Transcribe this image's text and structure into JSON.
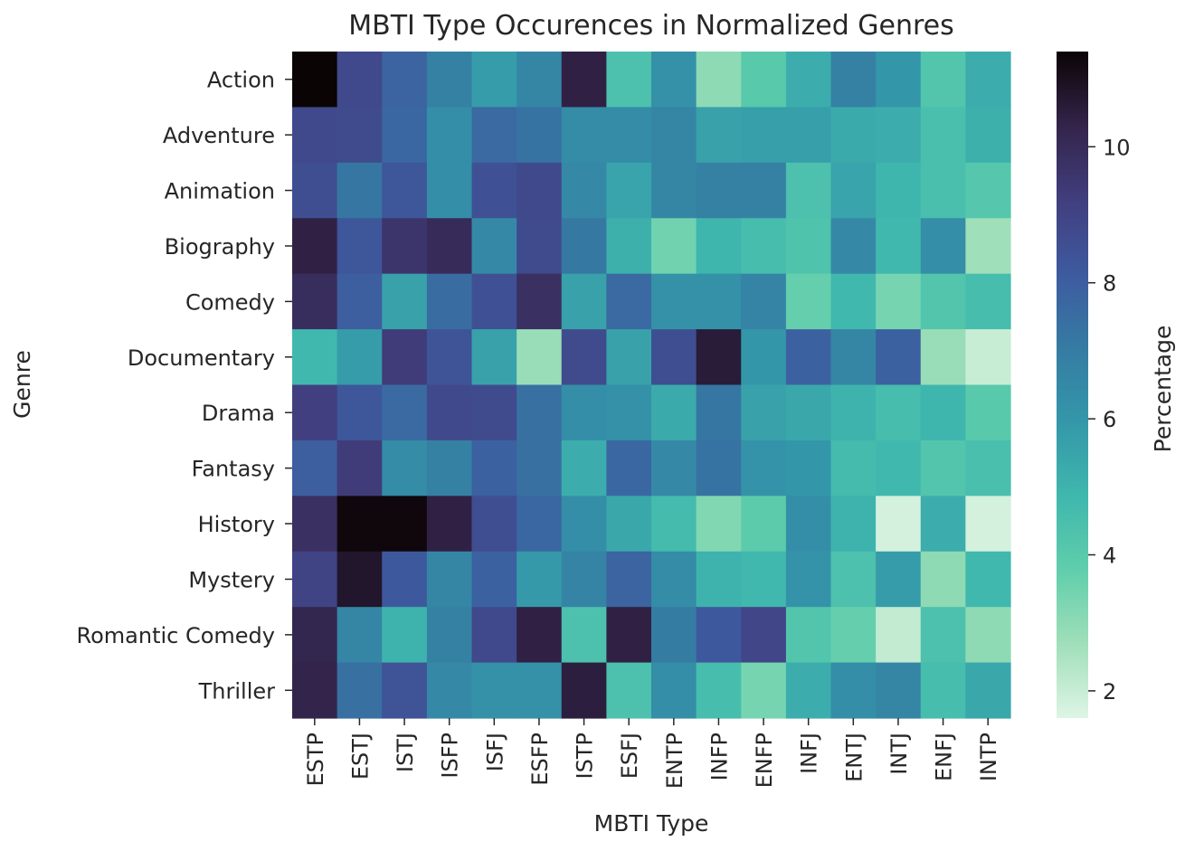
{
  "chart_data": {
    "type": "heatmap",
    "title": "MBTI Type Occurences in Normalized Genres",
    "xlabel": "MBTI Type",
    "ylabel": "Genre",
    "x_categories": [
      "ESTP",
      "ESTJ",
      "ISTJ",
      "ISFP",
      "ISFJ",
      "ESFP",
      "ISTP",
      "ESFJ",
      "ENTP",
      "INFP",
      "ENFP",
      "INFJ",
      "ENTJ",
      "INTJ",
      "ENFJ",
      "INTP"
    ],
    "y_categories": [
      "Action",
      "Adventure",
      "Animation",
      "Biography",
      "Comedy",
      "Documentary",
      "Drama",
      "Fantasy",
      "History",
      "Mystery",
      "Romantic Comedy",
      "Thriller"
    ],
    "values": [
      [
        11.4,
        8.8,
        7.8,
        6.8,
        5.8,
        6.6,
        10.4,
        4.4,
        6.2,
        3.0,
        4.0,
        5.2,
        6.8,
        6.0,
        4.2,
        5.2
      ],
      [
        8.8,
        8.7,
        7.7,
        6.3,
        7.6,
        7.3,
        6.4,
        6.4,
        6.6,
        5.6,
        5.7,
        5.7,
        5.3,
        5.2,
        4.5,
        5.1
      ],
      [
        8.6,
        7.2,
        8.3,
        6.3,
        8.5,
        8.8,
        6.5,
        5.5,
        6.6,
        6.8,
        6.8,
        4.4,
        5.5,
        4.9,
        4.5,
        4.1
      ],
      [
        10.4,
        8.3,
        9.6,
        10.0,
        6.5,
        8.7,
        7.1,
        5.1,
        3.5,
        4.9,
        4.6,
        4.3,
        6.5,
        4.8,
        6.3,
        2.7
      ],
      [
        9.9,
        8.0,
        5.6,
        7.5,
        8.5,
        9.8,
        5.6,
        7.6,
        6.2,
        6.2,
        6.7,
        3.7,
        4.8,
        3.4,
        4.2,
        4.6
      ],
      [
        4.8,
        5.8,
        9.3,
        8.4,
        5.6,
        2.8,
        8.7,
        5.6,
        8.6,
        10.6,
        6.0,
        7.9,
        6.6,
        7.9,
        2.8,
        2.0
      ],
      [
        9.2,
        8.3,
        7.6,
        8.8,
        8.7,
        7.4,
        6.3,
        6.2,
        5.3,
        7.2,
        5.6,
        5.4,
        5.0,
        4.6,
        4.9,
        4.0
      ],
      [
        8.0,
        9.3,
        6.4,
        6.8,
        7.9,
        7.4,
        5.2,
        7.7,
        6.5,
        7.3,
        6.1,
        6.0,
        4.7,
        4.8,
        4.2,
        4.5
      ],
      [
        9.8,
        11.3,
        11.3,
        10.4,
        8.6,
        7.7,
        6.3,
        5.4,
        4.7,
        3.2,
        3.9,
        6.3,
        5.0,
        1.8,
        5.2,
        1.8
      ],
      [
        9.0,
        10.8,
        8.2,
        6.6,
        7.9,
        5.9,
        6.7,
        7.8,
        6.4,
        5.0,
        4.8,
        6.1,
        4.4,
        5.8,
        3.0,
        4.8
      ],
      [
        10.2,
        6.6,
        5.0,
        6.8,
        8.8,
        10.4,
        4.4,
        10.4,
        7.0,
        8.2,
        8.9,
        4.2,
        3.7,
        2.1,
        4.4,
        3.0
      ],
      [
        10.3,
        7.4,
        8.4,
        6.5,
        6.2,
        6.2,
        10.5,
        4.4,
        6.3,
        4.6,
        3.4,
        5.2,
        6.3,
        6.6,
        4.6,
        5.4
      ]
    ],
    "vmin": 1.6,
    "vmax": 11.4,
    "colormap": "mako_r",
    "colors": [
      "#def5e5",
      "#a0dfb9",
      "#60ceac",
      "#3fb7ad",
      "#3497a9",
      "#357ba3",
      "#3e5a9f",
      "#413e7e",
      "#33244a",
      "#0b0405"
    ],
    "colorbar": {
      "label": "Percentage",
      "ticks": [
        2,
        4,
        6,
        8,
        10
      ],
      "tick_labels": [
        "2",
        "4",
        "6",
        "8",
        "10"
      ]
    }
  }
}
